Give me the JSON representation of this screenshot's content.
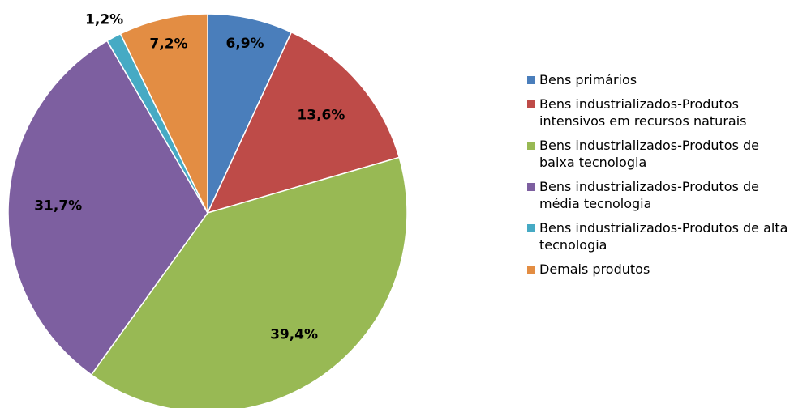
{
  "chart_data": {
    "type": "pie",
    "categories": [
      "Bens primários",
      "Bens industrializados-Produtos intensivos em recursos naturais",
      "Bens industrializados-Produtos de baixa tecnologia",
      "Bens industrializados-Produtos de média tecnologia",
      "Bens industrializados-Produtos de alta tecnologia",
      "Demais produtos"
    ],
    "values": [
      6.9,
      13.6,
      39.4,
      31.7,
      1.2,
      7.2
    ],
    "value_labels": [
      "6,9%",
      "13,6%",
      "39,4%",
      "31,7%",
      "1,2%",
      "7,2%"
    ],
    "colors": [
      "#4a7ebb",
      "#be4b48",
      "#98b954",
      "#7d5fa0",
      "#46aac4",
      "#e38d43"
    ],
    "legend": "right"
  }
}
